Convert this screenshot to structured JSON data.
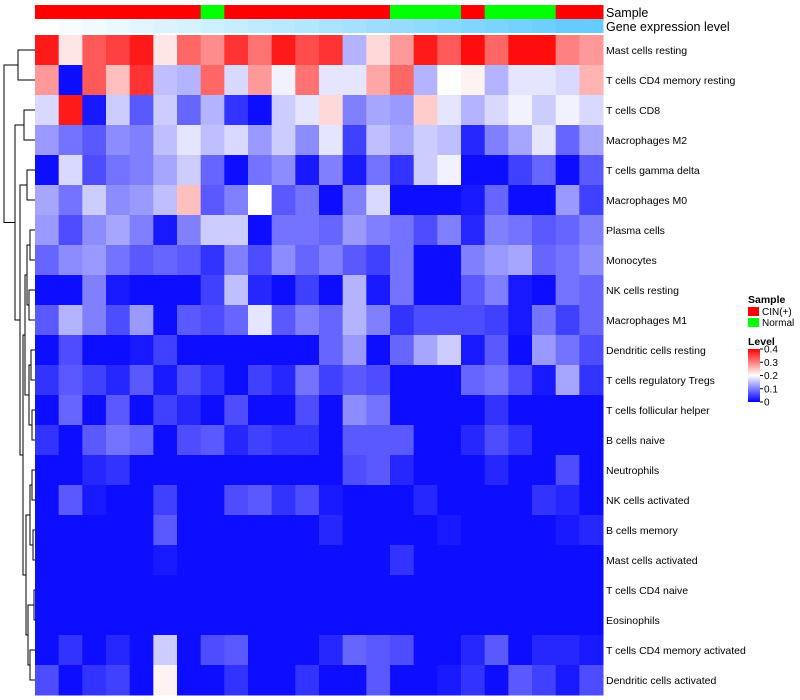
{
  "chart_data": {
    "type": "heatmap",
    "title": "",
    "annotation_tracks": [
      {
        "name": "Sample",
        "label": "Sample"
      },
      {
        "name": "Gene expression level",
        "label": "Gene expression level"
      }
    ],
    "sample_groups": [
      "CIN",
      "CIN",
      "CIN",
      "CIN",
      "CIN",
      "CIN",
      "CIN",
      "Normal",
      "CIN",
      "CIN",
      "CIN",
      "CIN",
      "CIN",
      "CIN",
      "CIN",
      "Normal",
      "Normal",
      "Normal",
      "CIN",
      "Normal",
      "Normal",
      "Normal",
      "CIN",
      "CIN"
    ],
    "expression_level_track": [
      0.0,
      0.05,
      0.09,
      0.14,
      0.18,
      0.23,
      0.27,
      0.32,
      0.36,
      0.41,
      0.45,
      0.5,
      0.55,
      0.59,
      0.64,
      0.68,
      0.73,
      0.77,
      0.82,
      0.86,
      0.91,
      0.95,
      1.0,
      1.0
    ],
    "legend_sample": {
      "title": "Sample",
      "entries": [
        {
          "label": "CIN(+)",
          "color": "#ff0000"
        },
        {
          "label": "Normal",
          "color": "#00ff00"
        }
      ]
    },
    "legend_level": {
      "title": "Level",
      "ticks": [
        "0.4",
        "0.3",
        "0.2",
        "0.1",
        "0"
      ],
      "range": [
        0,
        0.4
      ],
      "colors": {
        "low": "#0000ff",
        "mid": "#ffffff",
        "high": "#ff0000"
      }
    },
    "rows": [
      {
        "label": "Mast cells resting",
        "values": [
          0.38,
          0.22,
          0.33,
          0.35,
          0.38,
          0.22,
          0.32,
          0.29,
          0.36,
          0.31,
          0.38,
          0.34,
          0.36,
          0.14,
          0.23,
          0.28,
          0.38,
          0.33,
          0.39,
          0.32,
          0.39,
          0.39,
          0.3,
          0.28
        ]
      },
      {
        "label": "T cells CD4 memory resting",
        "values": [
          0.28,
          0.01,
          0.33,
          0.25,
          0.36,
          0.15,
          0.14,
          0.32,
          0.17,
          0.28,
          0.19,
          0.31,
          0.18,
          0.18,
          0.27,
          0.32,
          0.14,
          0.2,
          0.21,
          0.14,
          0.18,
          0.18,
          0.17,
          0.26
        ]
      },
      {
        "label": "T cells CD8",
        "values": [
          0.17,
          0.38,
          0.02,
          0.16,
          0.07,
          0.16,
          0.08,
          0.14,
          0.04,
          0.01,
          0.16,
          0.18,
          0.23,
          0.1,
          0.13,
          0.12,
          0.24,
          0.18,
          0.14,
          0.17,
          0.19,
          0.16,
          0.19,
          0.17
        ]
      },
      {
        "label": "Macrophages M2",
        "values": [
          0.12,
          0.09,
          0.07,
          0.11,
          0.1,
          0.15,
          0.18,
          0.15,
          0.17,
          0.12,
          0.16,
          0.11,
          0.18,
          0.05,
          0.15,
          0.13,
          0.16,
          0.15,
          0.03,
          0.1,
          0.13,
          0.18,
          0.08,
          0.13
        ]
      },
      {
        "label": "T cells gamma delta",
        "values": [
          0.01,
          0.17,
          0.06,
          0.09,
          0.1,
          0.13,
          0.16,
          0.08,
          0.01,
          0.09,
          0.11,
          0.02,
          0.1,
          0.02,
          0.09,
          0.04,
          0.16,
          0.19,
          0.01,
          0.01,
          0.05,
          0.08,
          0.01,
          0.07
        ]
      },
      {
        "label": "Macrophages M0",
        "values": [
          0.13,
          0.09,
          0.16,
          0.11,
          0.12,
          0.15,
          0.25,
          0.07,
          0.1,
          0.2,
          0.07,
          0.09,
          0.01,
          0.1,
          0.17,
          0.01,
          0.01,
          0.01,
          0.02,
          0.08,
          0.01,
          0.01,
          0.12,
          0.05
        ]
      },
      {
        "label": "Plasma cells",
        "values": [
          0.12,
          0.06,
          0.11,
          0.13,
          0.1,
          0.02,
          0.1,
          0.16,
          0.16,
          0.01,
          0.09,
          0.09,
          0.08,
          0.12,
          0.1,
          0.09,
          0.06,
          0.1,
          0.03,
          0.1,
          0.09,
          0.07,
          0.08,
          0.1
        ]
      },
      {
        "label": "Monocytes",
        "values": [
          0.08,
          0.11,
          0.12,
          0.09,
          0.07,
          0.08,
          0.07,
          0.04,
          0.1,
          0.06,
          0.11,
          0.08,
          0.1,
          0.07,
          0.05,
          0.09,
          0.01,
          0.01,
          0.1,
          0.12,
          0.13,
          0.08,
          0.09,
          0.11
        ]
      },
      {
        "label": "NK cells resting",
        "values": [
          0.01,
          0.01,
          0.1,
          0.02,
          0.01,
          0.01,
          0.01,
          0.05,
          0.15,
          0.03,
          0.01,
          0.05,
          0.01,
          0.14,
          0.02,
          0.09,
          0.01,
          0.01,
          0.07,
          0.1,
          0.02,
          0.01,
          0.09,
          0.08
        ]
      },
      {
        "label": "Macrophages M1",
        "values": [
          0.07,
          0.14,
          0.1,
          0.06,
          0.12,
          0.01,
          0.07,
          0.06,
          0.08,
          0.18,
          0.07,
          0.1,
          0.08,
          0.14,
          0.1,
          0.04,
          0.06,
          0.06,
          0.06,
          0.05,
          0.02,
          0.09,
          0.05,
          0.08
        ]
      },
      {
        "label": "Dendritic cells resting",
        "values": [
          0.01,
          0.06,
          0.01,
          0.01,
          0.02,
          0.05,
          0.01,
          0.01,
          0.01,
          0.01,
          0.01,
          0.01,
          0.08,
          0.12,
          0.01,
          0.08,
          0.13,
          0.16,
          0.02,
          0.07,
          0.01,
          0.12,
          0.09,
          0.06
        ]
      },
      {
        "label": "T cells regulatory  Tregs",
        "values": [
          0.04,
          0.07,
          0.05,
          0.03,
          0.07,
          0.02,
          0.06,
          0.04,
          0.01,
          0.05,
          0.03,
          0.09,
          0.05,
          0.07,
          0.06,
          0.01,
          0.01,
          0.01,
          0.08,
          0.09,
          0.06,
          0.02,
          0.13,
          0.04
        ]
      },
      {
        "label": "T cells follicular helper",
        "values": [
          0.01,
          0.08,
          0.01,
          0.07,
          0.01,
          0.05,
          0.03,
          0.01,
          0.06,
          0.01,
          0.01,
          0.06,
          0.01,
          0.11,
          0.09,
          0.01,
          0.01,
          0.01,
          0.01,
          0.04,
          0.01,
          0.01,
          0.01,
          0.01
        ]
      },
      {
        "label": "B cells naive",
        "values": [
          0.04,
          0.01,
          0.07,
          0.09,
          0.08,
          0.01,
          0.06,
          0.07,
          0.03,
          0.05,
          0.04,
          0.04,
          0.01,
          0.07,
          0.07,
          0.07,
          0.01,
          0.01,
          0.03,
          0.06,
          0.04,
          0.01,
          0.01,
          0.01
        ]
      },
      {
        "label": "Neutrophils",
        "values": [
          0.01,
          0.01,
          0.03,
          0.04,
          0.01,
          0.01,
          0.01,
          0.01,
          0.01,
          0.01,
          0.01,
          0.01,
          0.01,
          0.06,
          0.07,
          0.03,
          0.01,
          0.01,
          0.01,
          0.03,
          0.01,
          0.01,
          0.06,
          0.01
        ]
      },
      {
        "label": "NK cells activated",
        "values": [
          0.01,
          0.07,
          0.02,
          0.01,
          0.01,
          0.05,
          0.01,
          0.01,
          0.06,
          0.07,
          0.04,
          0.06,
          0.02,
          0.01,
          0.01,
          0.01,
          0.03,
          0.01,
          0.01,
          0.01,
          0.01,
          0.04,
          0.03,
          0.01
        ]
      },
      {
        "label": "B cells memory",
        "values": [
          0.01,
          0.01,
          0.01,
          0.01,
          0.01,
          0.07,
          0.01,
          0.01,
          0.01,
          0.01,
          0.01,
          0.01,
          0.03,
          0.01,
          0.01,
          0.01,
          0.01,
          0.02,
          0.01,
          0.01,
          0.01,
          0.01,
          0.02,
          0.03
        ]
      },
      {
        "label": "Mast cells activated",
        "values": [
          0.01,
          0.01,
          0.01,
          0.01,
          0.01,
          0.02,
          0.01,
          0.01,
          0.01,
          0.01,
          0.01,
          0.01,
          0.01,
          0.01,
          0.01,
          0.04,
          0.01,
          0.01,
          0.01,
          0.01,
          0.01,
          0.01,
          0.01,
          0.01
        ]
      },
      {
        "label": "T cells CD4 naive",
        "values": [
          0.01,
          0.01,
          0.01,
          0.01,
          0.01,
          0.01,
          0.01,
          0.01,
          0.01,
          0.01,
          0.01,
          0.01,
          0.01,
          0.01,
          0.01,
          0.01,
          0.01,
          0.01,
          0.01,
          0.01,
          0.01,
          0.01,
          0.01,
          0.01
        ]
      },
      {
        "label": "Eosinophils",
        "values": [
          0.01,
          0.01,
          0.01,
          0.01,
          0.01,
          0.01,
          0.01,
          0.01,
          0.01,
          0.01,
          0.01,
          0.01,
          0.01,
          0.01,
          0.01,
          0.01,
          0.01,
          0.01,
          0.01,
          0.01,
          0.01,
          0.01,
          0.01,
          0.01
        ]
      },
      {
        "label": "T cells CD4 memory activated",
        "values": [
          0.01,
          0.04,
          0.01,
          0.03,
          0.01,
          0.16,
          0.01,
          0.06,
          0.07,
          0.01,
          0.01,
          0.01,
          0.03,
          0.08,
          0.07,
          0.06,
          0.01,
          0.01,
          0.03,
          0.07,
          0.01,
          0.03,
          0.03,
          0.02
        ]
      },
      {
        "label": "Dendritic cells activated",
        "values": [
          0.06,
          0.01,
          0.04,
          0.05,
          0.01,
          0.21,
          0.01,
          0.01,
          0.04,
          0.01,
          0.01,
          0.04,
          0.01,
          0.01,
          0.07,
          0.01,
          0.01,
          0.02,
          0.04,
          0.01,
          0.07,
          0.05,
          0.02,
          0.06
        ]
      }
    ],
    "dendrogram": "hierarchical clustering of rows (left side)"
  }
}
